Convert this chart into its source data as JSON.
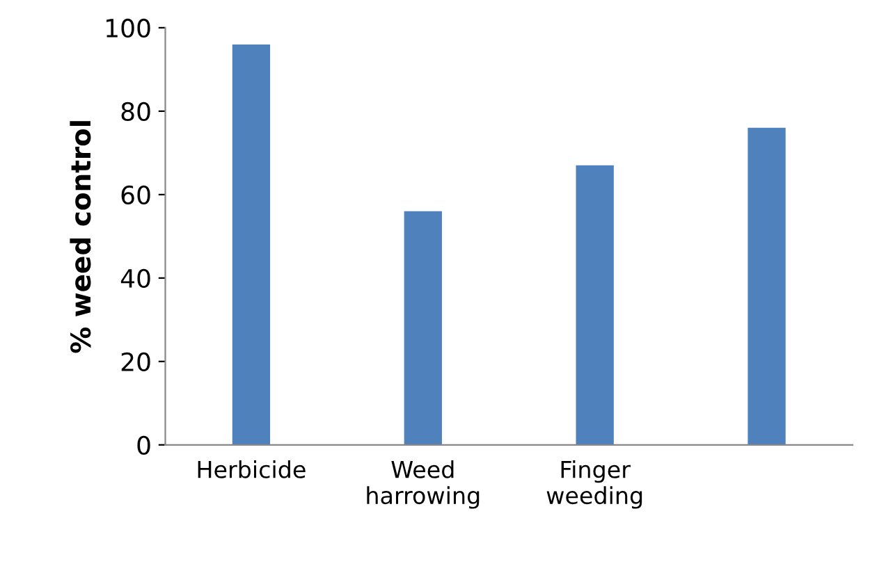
{
  "chart_data": {
    "type": "bar",
    "ylabel": "% weed control",
    "categories": [
      "Herbicide",
      "Weed\nharrowing",
      "Finger\nweeding",
      null
    ],
    "values": [
      96,
      56,
      67,
      76
    ],
    "color": "#4f81bd",
    "ylim": [
      0,
      100
    ],
    "yticks": [
      0,
      20,
      40,
      60,
      80,
      100
    ],
    "grid": false,
    "legend": false
  }
}
